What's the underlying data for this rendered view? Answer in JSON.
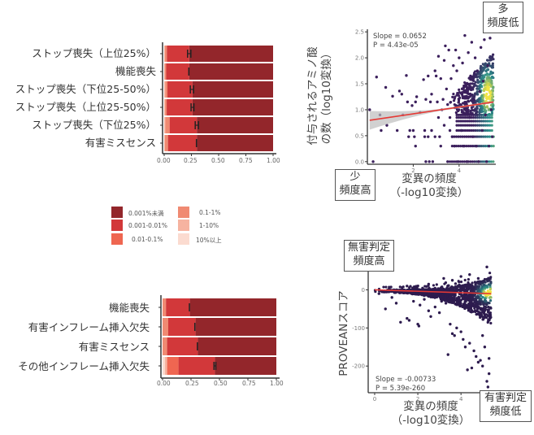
{
  "chart_data": [
    {
      "id": "bar1",
      "type": "bar",
      "orientation": "horizontal",
      "stacked": true,
      "categories": [
        "ストップ喪失（上位25%）",
        "機能喪失",
        "ストップ喪失（下位25-50%）",
        "ストップ喪失（上位25-50%）",
        "ストップ喪失（下位25%）",
        "有害ミスセンス"
      ],
      "series": [
        {
          "name": "10%以上",
          "values": [
            0.0,
            0.0,
            0.0,
            0.0,
            0.0,
            0.0
          ]
        },
        {
          "name": "1-10%",
          "values": [
            0.005,
            0.003,
            0.01,
            0.008,
            0.01,
            0.005
          ]
        },
        {
          "name": "0.1-1%",
          "values": [
            0.02,
            0.015,
            0.02,
            0.015,
            0.04,
            0.03
          ]
        },
        {
          "name": "0.01-0.1%",
          "values": [
            0.0,
            0.0,
            0.0,
            0.0,
            0.0,
            0.0
          ]
        },
        {
          "name": "0.001-0.01%",
          "values": [
            0.205,
            0.212,
            0.23,
            0.237,
            0.25,
            0.265
          ]
        },
        {
          "name": "0.001%未満",
          "values": [
            0.77,
            0.77,
            0.74,
            0.74,
            0.7,
            0.7
          ]
        }
      ],
      "error_bars": {
        "centers": [
          0.23,
          0.23,
          0.255,
          0.26,
          0.3,
          0.3
        ],
        "half_width": [
          0.015,
          0.003,
          0.015,
          0.013,
          0.015,
          0.003
        ]
      },
      "xticks": [
        "0.00",
        "0.25",
        "0.50",
        "0.75",
        "1.00"
      ],
      "xlim": [
        0,
        1
      ]
    },
    {
      "id": "bar2",
      "type": "bar",
      "orientation": "horizontal",
      "stacked": true,
      "categories": [
        "機能喪失",
        "有害インフレーム挿入欠失",
        "有害ミスセンス",
        "その他インフレーム挿入欠失"
      ],
      "series": [
        {
          "name": "10%以上",
          "values": [
            0.0,
            0.0,
            0.0,
            0.02
          ]
        },
        {
          "name": "1-10%",
          "values": [
            0.0,
            0.0,
            0.0,
            0.02
          ]
        },
        {
          "name": "0.1-1%",
          "values": [
            0.03,
            0.05,
            0.04,
            0.0
          ]
        },
        {
          "name": "0.01-0.1%",
          "values": [
            0.0,
            0.0,
            0.0,
            0.1
          ]
        },
        {
          "name": "0.001-0.01%",
          "values": [
            0.21,
            0.24,
            0.27,
            0.32
          ]
        },
        {
          "name": "0.001%未満",
          "values": [
            0.76,
            0.71,
            0.69,
            0.54
          ]
        }
      ],
      "error_bars": {
        "centers": [
          0.24,
          0.29,
          0.31,
          0.46
        ],
        "half_width": [
          0.004,
          0.006,
          0.004,
          0.008
        ]
      },
      "xticks": [
        "0.00",
        "0.25",
        "0.50",
        "0.75",
        "1.00"
      ],
      "xlim": [
        0,
        1
      ]
    },
    {
      "id": "scatter1",
      "type": "scatter",
      "xlabel": "変異の頻度\n(-log10変換)",
      "xlabel_line1": "変異の頻度",
      "xlabel_line2": "（-log10変換）",
      "ylabel_line1": "付与されるアミノ酸",
      "ylabel_line2": "の数（log10変換）",
      "xlim": [
        0,
        5.6
      ],
      "ylim": [
        -0.05,
        2.55
      ],
      "xticks": [
        "2",
        "4"
      ],
      "xtick_values": [
        2,
        4
      ],
      "yticks": [
        "0.0",
        "0.5",
        "1.0",
        "1.5",
        "2.0",
        "2.5"
      ],
      "ytick_values": [
        0,
        0.5,
        1.0,
        1.5,
        2.0,
        2.5
      ],
      "regression": {
        "slope": 0.0652,
        "intercept": 0.79,
        "x_range": [
          0.1,
          5.5
        ]
      },
      "stat_slope": "Slope = 0.0652",
      "stat_p": "P = 4.43e-05",
      "annotation_top_right": [
        "多",
        "頻度低"
      ],
      "annotation_bottom_left": [
        "少",
        "頻度高"
      ],
      "points": [
        [
          0.1,
          1.0
        ],
        [
          0.25,
          0.0
        ],
        [
          0.4,
          1.63
        ],
        [
          0.55,
          0.9
        ],
        [
          0.6,
          0.6
        ],
        [
          0.8,
          1.43
        ],
        [
          0.85,
          0.7
        ],
        [
          1.1,
          1.26
        ],
        [
          1.3,
          0.6
        ],
        [
          1.4,
          1.36
        ],
        [
          1.5,
          1.3
        ],
        [
          1.55,
          0.9
        ],
        [
          1.7,
          1.66
        ],
        [
          1.75,
          1.15
        ],
        [
          1.8,
          0.48
        ],
        [
          1.85,
          0.6
        ],
        [
          1.95,
          1.08
        ],
        [
          2.0,
          0.6
        ],
        [
          2.05,
          0.48
        ],
        [
          2.1,
          1.15
        ],
        [
          2.1,
          0.3
        ],
        [
          2.15,
          1.25
        ],
        [
          2.3,
          0.95
        ],
        [
          2.45,
          1.58
        ],
        [
          2.5,
          0.6
        ],
        [
          2.5,
          0.48
        ],
        [
          2.55,
          1.2
        ],
        [
          2.55,
          0.0
        ],
        [
          2.65,
          1.65
        ],
        [
          2.65,
          0.48
        ],
        [
          2.7,
          0.0
        ],
        [
          2.75,
          1.15
        ],
        [
          2.8,
          1.3
        ],
        [
          2.8,
          0.6
        ],
        [
          2.85,
          0.0
        ],
        [
          2.95,
          1.75
        ],
        [
          2.95,
          0.48
        ],
        [
          3.0,
          1.65
        ],
        [
          3.05,
          1.15
        ],
        [
          3.1,
          2.03
        ],
        [
          3.1,
          0.85
        ],
        [
          3.15,
          0.48
        ],
        [
          3.2,
          1.6
        ],
        [
          3.2,
          0.3
        ],
        [
          3.25,
          1.0
        ],
        [
          3.3,
          1.2
        ],
        [
          3.35,
          1.95
        ],
        [
          3.35,
          0.7
        ],
        [
          3.4,
          2.23
        ],
        [
          3.45,
          1.4
        ],
        [
          3.5,
          1.1
        ],
        [
          3.5,
          0.0
        ],
        [
          3.55,
          2.15
        ],
        [
          3.6,
          0.85
        ],
        [
          3.6,
          0.6
        ],
        [
          3.65,
          1.6
        ],
        [
          3.7,
          0.48
        ],
        [
          3.75,
          1.85
        ],
        [
          3.8,
          0.3
        ],
        [
          3.85,
          2.15
        ],
        [
          3.9,
          1.75
        ],
        [
          3.95,
          0.0
        ],
        [
          4.0,
          2.0
        ],
        [
          4.05,
          1.1
        ],
        [
          4.1,
          0.6
        ],
        [
          4.15,
          1.9
        ],
        [
          4.2,
          0.3
        ],
        [
          4.25,
          2.43
        ],
        [
          4.3,
          1.45
        ],
        [
          4.35,
          0.0
        ],
        [
          4.4,
          2.1
        ],
        [
          4.45,
          0.85
        ],
        [
          4.5,
          1.65
        ],
        [
          4.55,
          2.3
        ],
        [
          4.6,
          0.48
        ],
        [
          4.65,
          1.2
        ],
        [
          4.7,
          2.0
        ],
        [
          4.75,
          0.3
        ],
        [
          4.8,
          1.75
        ],
        [
          4.85,
          0.0
        ],
        [
          4.9,
          1.35
        ],
        [
          4.95,
          2.2
        ],
        [
          5.0,
          0.6
        ],
        [
          5.05,
          1.55
        ],
        [
          5.1,
          2.35
        ],
        [
          5.15,
          0.9
        ],
        [
          5.2,
          0.0
        ],
        [
          5.25,
          1.85
        ],
        [
          5.3,
          0.3
        ],
        [
          5.35,
          2.38
        ],
        [
          5.4,
          1.0
        ],
        [
          5.45,
          0.48
        ]
      ],
      "density_color_low": "#3b1f5c",
      "density_color_mid": "#2a8f8a",
      "density_color_high": "#f0e442",
      "line_color": "#e53935"
    },
    {
      "id": "scatter2",
      "type": "scatter",
      "xlabel_line1": "変異の頻度",
      "xlabel_line2": "（-log10変換）",
      "ylabel": "PROVEANスコア",
      "xlim": [
        -0.3,
        5.5
      ],
      "ylim": [
        -270,
        65
      ],
      "xticks": [
        "0",
        "2",
        "4"
      ],
      "xtick_values": [
        0,
        2,
        4
      ],
      "yticks": [
        "0",
        "-100",
        "-200"
      ],
      "ytick_values": [
        0,
        -100,
        -200
      ],
      "regression": {
        "slope": -0.00733,
        "intercept": 0,
        "x_range": [
          0,
          5.4
        ]
      },
      "stat_slope": "Slope = -0.00733",
      "stat_p": "P = 5.39e-260",
      "annotation_top_left": [
        "無害判定",
        "頻度高"
      ],
      "annotation_bottom_right": [
        "有害判定",
        "頻度低"
      ],
      "points": [
        [
          0.2,
          -10
        ],
        [
          0.5,
          -50
        ],
        [
          0.8,
          -20
        ],
        [
          1.0,
          -35
        ],
        [
          1.2,
          -85
        ],
        [
          1.5,
          -75
        ],
        [
          1.6,
          -80
        ],
        [
          1.8,
          -30
        ],
        [
          2.0,
          -90
        ],
        [
          2.05,
          -95
        ],
        [
          2.1,
          -40
        ],
        [
          2.3,
          -25
        ],
        [
          2.5,
          -55
        ],
        [
          2.6,
          -70
        ],
        [
          2.8,
          -45
        ],
        [
          3.0,
          -60
        ],
        [
          3.1,
          -30
        ],
        [
          3.3,
          -35
        ],
        [
          3.4,
          -170
        ],
        [
          3.5,
          -90
        ],
        [
          3.6,
          -115
        ],
        [
          3.7,
          -120
        ],
        [
          3.8,
          -100
        ],
        [
          4.0,
          -110
        ],
        [
          4.1,
          -130
        ],
        [
          4.2,
          -150
        ],
        [
          4.3,
          -210
        ],
        [
          4.4,
          -140
        ],
        [
          4.5,
          -205
        ],
        [
          4.6,
          -160
        ],
        [
          4.7,
          -175
        ],
        [
          4.8,
          -190
        ],
        [
          4.9,
          -185
        ],
        [
          5.0,
          -200
        ],
        [
          5.2,
          -240
        ],
        [
          5.25,
          -255
        ],
        [
          5.3,
          -220
        ],
        [
          3.2,
          30
        ],
        [
          3.6,
          25
        ],
        [
          4.0,
          35
        ],
        [
          4.4,
          40
        ],
        [
          4.8,
          30
        ],
        [
          5.2,
          60
        ],
        [
          2.5,
          15
        ],
        [
          1.5,
          10
        ],
        [
          5.0,
          -120
        ],
        [
          5.1,
          -150
        ],
        [
          5.3,
          -180
        ]
      ],
      "density_color_low": "#2d1b4e",
      "density_color_mid": "#2a8f8a",
      "density_color_high": "#f0e442",
      "line_color": "#e53935"
    }
  ],
  "legend": {
    "items": [
      {
        "label": "0.001%未満",
        "color": "#93262b"
      },
      {
        "label": "0.001-0.01%",
        "color": "#d2383a"
      },
      {
        "label": "0.01-0.1%",
        "color": "#ef6651"
      },
      {
        "label": "0.1-1%",
        "color": "#f08a72"
      },
      {
        "label": "1-10%",
        "color": "#f6b3a0"
      },
      {
        "label": "10%以上",
        "color": "#fbdbd0"
      }
    ]
  }
}
